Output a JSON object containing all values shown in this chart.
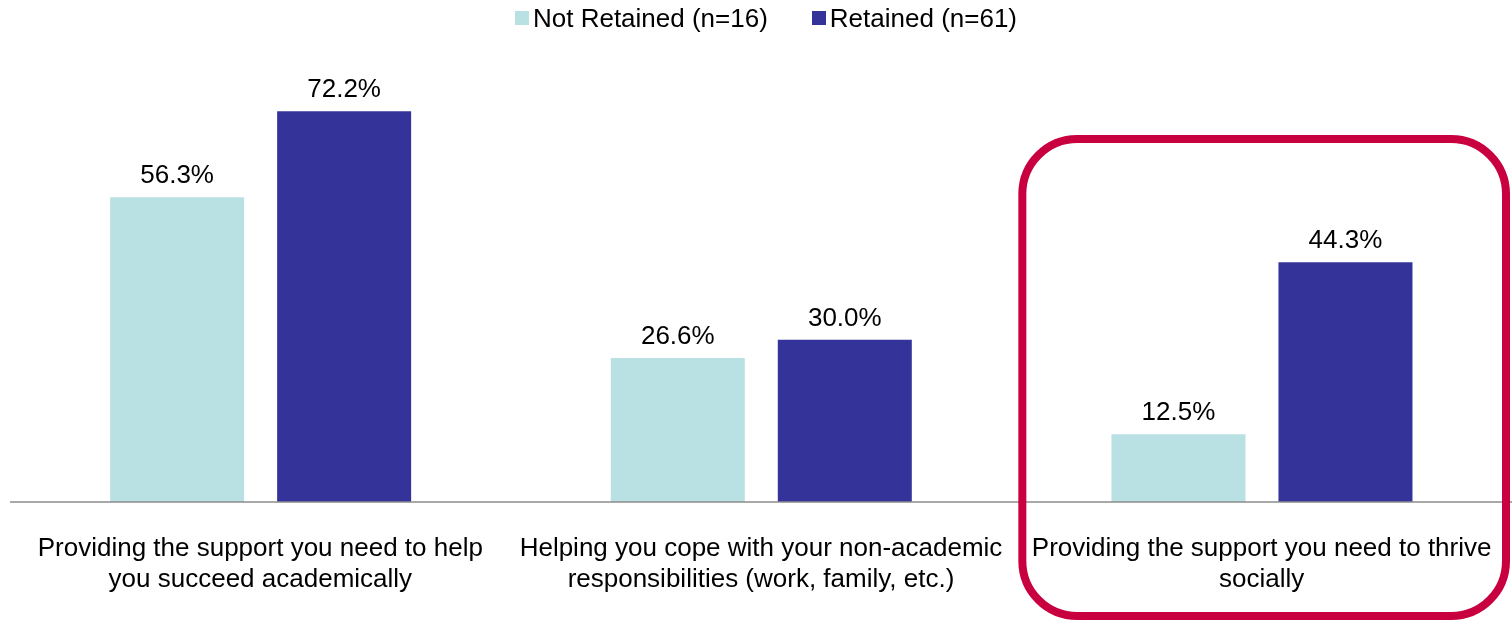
{
  "chart_data": {
    "type": "bar",
    "categories": [
      "Providing the support you need to help you succeed academically",
      "Helping you cope with your non-academic responsibilities (work, family, etc.)",
      "Providing the support you need to thrive socially"
    ],
    "series": [
      {
        "name": "Not Retained (n=16)",
        "color": "#b9e0e2",
        "values": [
          56.3,
          26.6,
          12.5
        ],
        "value_labels": [
          "56.3%",
          "26.6%",
          "12.5%"
        ]
      },
      {
        "name": "Retained (n=61)",
        "color": "#333399",
        "values": [
          72.2,
          30.0,
          44.3
        ],
        "value_labels": [
          "72.2%",
          "30.0%",
          "44.3%"
        ]
      }
    ],
    "tick_labels": "x",
    "legend": "top"
  }
}
